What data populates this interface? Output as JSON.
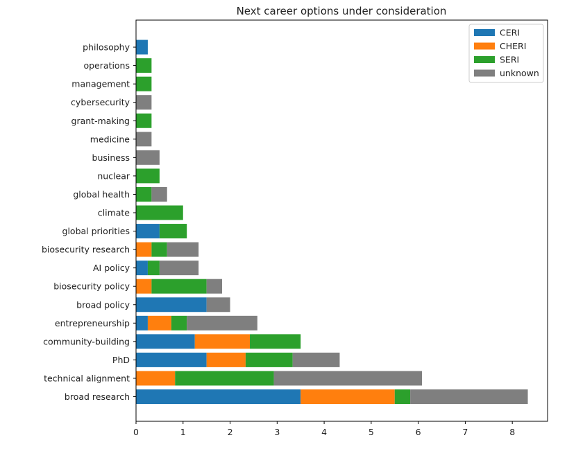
{
  "chart_data": {
    "type": "bar",
    "orientation": "horizontal",
    "stacked": true,
    "title": "Next career options under consideration",
    "xlabel": "",
    "ylabel": "",
    "xlim": [
      0,
      8.75
    ],
    "xticks": [
      0,
      1,
      2,
      3,
      4,
      5,
      6,
      7,
      8
    ],
    "grid": false,
    "legend_position": "top-right",
    "categories": [
      "broad research",
      "technical alignment",
      "PhD",
      "community-building",
      "entrepreneurship",
      "broad policy",
      "biosecurity policy",
      "AI policy",
      "biosecurity research",
      "global priorities",
      "climate",
      "global health",
      "nuclear",
      "business",
      "medicine",
      "grant-making",
      "cybersecurity",
      "management",
      "operations",
      "philosophy"
    ],
    "series": [
      {
        "name": "CERI",
        "color": "#1f77b4",
        "values": [
          3.5,
          0,
          1.5,
          1.25,
          0.25,
          1.5,
          0,
          0.25,
          0,
          0.5,
          0,
          0,
          0,
          0,
          0,
          0,
          0,
          0,
          0,
          0.25
        ]
      },
      {
        "name": "CHERI",
        "color": "#ff7f0e",
        "values": [
          2.0,
          0.83,
          0.83,
          1.17,
          0.5,
          0,
          0.33,
          0,
          0.33,
          0,
          0,
          0,
          0,
          0,
          0,
          0,
          0,
          0,
          0,
          0
        ]
      },
      {
        "name": "SERI",
        "color": "#2ca02c",
        "values": [
          0.33,
          2.1,
          1.0,
          1.08,
          0.33,
          0,
          1.17,
          0.25,
          0.33,
          0.58,
          1.0,
          0.33,
          0.5,
          0,
          0,
          0.33,
          0,
          0.33,
          0.33,
          0
        ]
      },
      {
        "name": "unknown",
        "color": "#7f7f7f",
        "values": [
          2.5,
          3.15,
          1.0,
          0,
          1.5,
          0.5,
          0.33,
          0.83,
          0.67,
          0,
          0,
          0.33,
          0,
          0.5,
          0.33,
          0,
          0.33,
          0,
          0,
          0
        ]
      }
    ]
  }
}
